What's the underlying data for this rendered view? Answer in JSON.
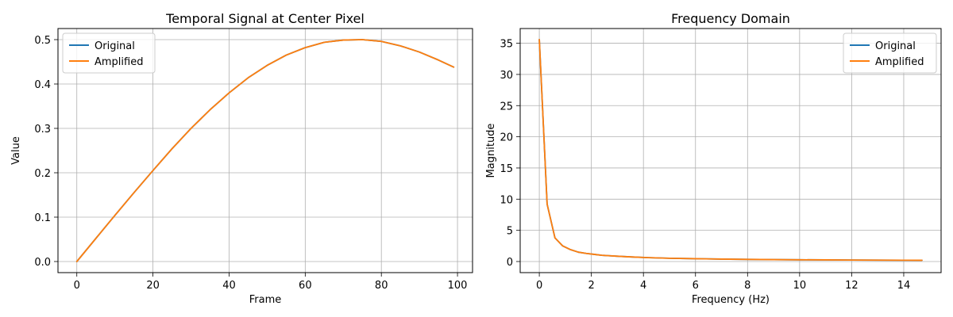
{
  "chart_data": [
    {
      "type": "line",
      "title": "Temporal Signal at Center Pixel",
      "xlabel": "Frame",
      "ylabel": "Value",
      "xlim": [
        -4.95,
        103.95
      ],
      "ylim": [
        -0.025,
        0.525
      ],
      "xticks": [
        0,
        20,
        40,
        60,
        80,
        100
      ],
      "yticks": [
        0.0,
        0.1,
        0.2,
        0.3,
        0.4,
        0.5
      ],
      "xtick_labels": [
        "0",
        "20",
        "40",
        "60",
        "80",
        "100"
      ],
      "ytick_labels": [
        "0.0",
        "0.1",
        "0.2",
        "0.3",
        "0.4",
        "0.5"
      ],
      "grid": true,
      "legend_position": "top-left",
      "x": [
        0,
        5,
        10,
        15,
        20,
        25,
        30,
        35,
        40,
        45,
        50,
        55,
        60,
        65,
        70,
        75,
        80,
        85,
        90,
        95,
        99
      ],
      "series": [
        {
          "name": "Original",
          "color": "#1f77b4",
          "values": [
            0.0,
            0.052,
            0.104,
            0.155,
            0.205,
            0.254,
            0.3,
            0.342,
            0.38,
            0.414,
            0.442,
            0.465,
            0.482,
            0.494,
            0.499,
            0.5,
            0.496,
            0.486,
            0.472,
            0.454,
            0.438
          ]
        },
        {
          "name": "Amplified",
          "color": "#ff7f0e",
          "values": [
            0.0,
            0.052,
            0.104,
            0.155,
            0.205,
            0.254,
            0.3,
            0.342,
            0.38,
            0.414,
            0.442,
            0.465,
            0.482,
            0.494,
            0.499,
            0.5,
            0.496,
            0.486,
            0.472,
            0.454,
            0.438
          ]
        }
      ]
    },
    {
      "type": "line",
      "title": "Frequency Domain",
      "xlabel": "Frequency (Hz)",
      "ylabel": "Magnitude",
      "xlim": [
        -0.735,
        15.435
      ],
      "ylim": [
        -1.78,
        37.36
      ],
      "xticks": [
        0,
        2,
        4,
        6,
        8,
        10,
        12,
        14
      ],
      "yticks": [
        0,
        5,
        10,
        15,
        20,
        25,
        30,
        35
      ],
      "xtick_labels": [
        "0",
        "2",
        "4",
        "6",
        "8",
        "10",
        "12",
        "14"
      ],
      "ytick_labels": [
        "0",
        "5",
        "10",
        "15",
        "20",
        "25",
        "30",
        "35"
      ],
      "grid": true,
      "legend_position": "top-right",
      "x": [
        0.0,
        0.3,
        0.6,
        0.9,
        1.2,
        1.5,
        1.8,
        2.1,
        2.4,
        3.0,
        3.6,
        4.2,
        5.0,
        6.0,
        7.0,
        8.0,
        9.0,
        10.0,
        11.0,
        12.0,
        13.0,
        14.0,
        14.7
      ],
      "series": [
        {
          "name": "Original",
          "color": "#1f77b4",
          "values": [
            35.6,
            9.2,
            3.8,
            2.5,
            1.9,
            1.5,
            1.3,
            1.15,
            1.0,
            0.85,
            0.72,
            0.62,
            0.52,
            0.45,
            0.39,
            0.34,
            0.31,
            0.28,
            0.26,
            0.24,
            0.22,
            0.21,
            0.2
          ]
        },
        {
          "name": "Amplified",
          "color": "#ff7f0e",
          "values": [
            35.6,
            9.2,
            3.8,
            2.5,
            1.9,
            1.5,
            1.3,
            1.15,
            1.0,
            0.85,
            0.72,
            0.62,
            0.52,
            0.45,
            0.39,
            0.34,
            0.31,
            0.28,
            0.26,
            0.24,
            0.22,
            0.21,
            0.2
          ]
        }
      ]
    }
  ]
}
